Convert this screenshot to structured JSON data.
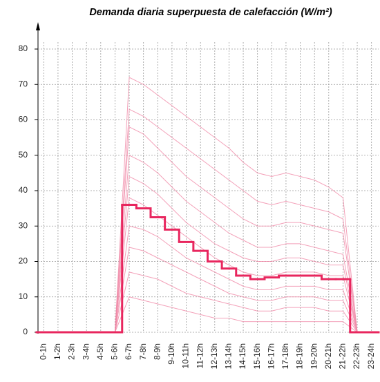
{
  "chart_data": {
    "type": "line",
    "title": "Demanda diaria superpuesta de calefacción (W/m²)",
    "categories": [
      "0-1h",
      "1-2h",
      "2-3h",
      "3-4h",
      "4-5h",
      "5-6h",
      "6-7h",
      "7-8h",
      "8-9h",
      "9-10h",
      "10-11h",
      "11-12h",
      "12-13h",
      "13-14h",
      "14-15h",
      "15-16h",
      "16-17h",
      "17-18h",
      "18-19h",
      "19-20h",
      "20-21h",
      "21-22h",
      "22-23h",
      "23-24h"
    ],
    "ylim": [
      0,
      80
    ],
    "yticks": [
      0,
      10,
      20,
      30,
      40,
      50,
      60,
      70,
      80
    ],
    "grid": true,
    "series": [
      {
        "color": "#f08aa8",
        "linewidth": 1,
        "step": false,
        "values": [
          0,
          0,
          0,
          0,
          0,
          0,
          72,
          70,
          67,
          64,
          61,
          58,
          55,
          52,
          48,
          45,
          44,
          45,
          44,
          43,
          41,
          38,
          0,
          0
        ]
      },
      {
        "color": "#f08aa8",
        "linewidth": 1,
        "step": false,
        "values": [
          0,
          0,
          0,
          0,
          0,
          0,
          63,
          61,
          58,
          55,
          52,
          49,
          46,
          43,
          40,
          37,
          36,
          37,
          36,
          35,
          34,
          32,
          0,
          0
        ]
      },
      {
        "color": "#f08aa8",
        "linewidth": 1,
        "step": false,
        "values": [
          0,
          0,
          0,
          0,
          0,
          0,
          58,
          56,
          52,
          48,
          44,
          41,
          38,
          35,
          32,
          30,
          30,
          31,
          31,
          30,
          29,
          28,
          0,
          0
        ]
      },
      {
        "color": "#f08aa8",
        "linewidth": 1,
        "step": false,
        "values": [
          0,
          0,
          0,
          0,
          0,
          0,
          50,
          48,
          45,
          41,
          37,
          34,
          31,
          28,
          26,
          24,
          24,
          25,
          25,
          24,
          23,
          22,
          0,
          0
        ]
      },
      {
        "color": "#f08aa8",
        "linewidth": 1,
        "step": false,
        "values": [
          0,
          0,
          0,
          0,
          0,
          0,
          44,
          42,
          39,
          35,
          31,
          28,
          25,
          23,
          21,
          20,
          20,
          21,
          21,
          20,
          19,
          19,
          0,
          0
        ]
      },
      {
        "color": "#f08aa8",
        "linewidth": 1,
        "step": false,
        "values": [
          0,
          0,
          0,
          0,
          0,
          0,
          38,
          36,
          33,
          30,
          27,
          24,
          21,
          19,
          17,
          16,
          16,
          17,
          17,
          17,
          16,
          16,
          0,
          0
        ]
      },
      {
        "color": "#f08aa8",
        "linewidth": 1,
        "step": false,
        "values": [
          0,
          0,
          0,
          0,
          0,
          0,
          30,
          29,
          27,
          24,
          21,
          19,
          17,
          15,
          13,
          12,
          12,
          13,
          13,
          13,
          12,
          12,
          0,
          0
        ]
      },
      {
        "color": "#f08aa8",
        "linewidth": 1,
        "step": false,
        "values": [
          0,
          0,
          0,
          0,
          0,
          0,
          24,
          23,
          21,
          19,
          17,
          15,
          13,
          11,
          10,
          9,
          9,
          10,
          10,
          10,
          9,
          9,
          0,
          0
        ]
      },
      {
        "color": "#f08aa8",
        "linewidth": 1,
        "step": false,
        "values": [
          0,
          0,
          0,
          0,
          0,
          0,
          17,
          16,
          15,
          13,
          11,
          10,
          9,
          8,
          7,
          6,
          6,
          7,
          7,
          7,
          6,
          6,
          0,
          0
        ]
      },
      {
        "color": "#f08aa8",
        "linewidth": 1,
        "step": false,
        "values": [
          0,
          0,
          0,
          0,
          0,
          0,
          10,
          9,
          8,
          7,
          6,
          5,
          4,
          4,
          3,
          3,
          3,
          3,
          3,
          3,
          3,
          3,
          0,
          0
        ]
      },
      {
        "color": "#e8265e",
        "linewidth": 3,
        "step": true,
        "values": [
          0,
          0,
          0,
          0,
          0,
          0,
          36,
          35,
          32.5,
          29,
          25.5,
          23,
          20,
          18,
          16,
          15,
          15.5,
          16,
          16,
          16,
          15,
          15,
          0,
          0
        ]
      }
    ]
  }
}
